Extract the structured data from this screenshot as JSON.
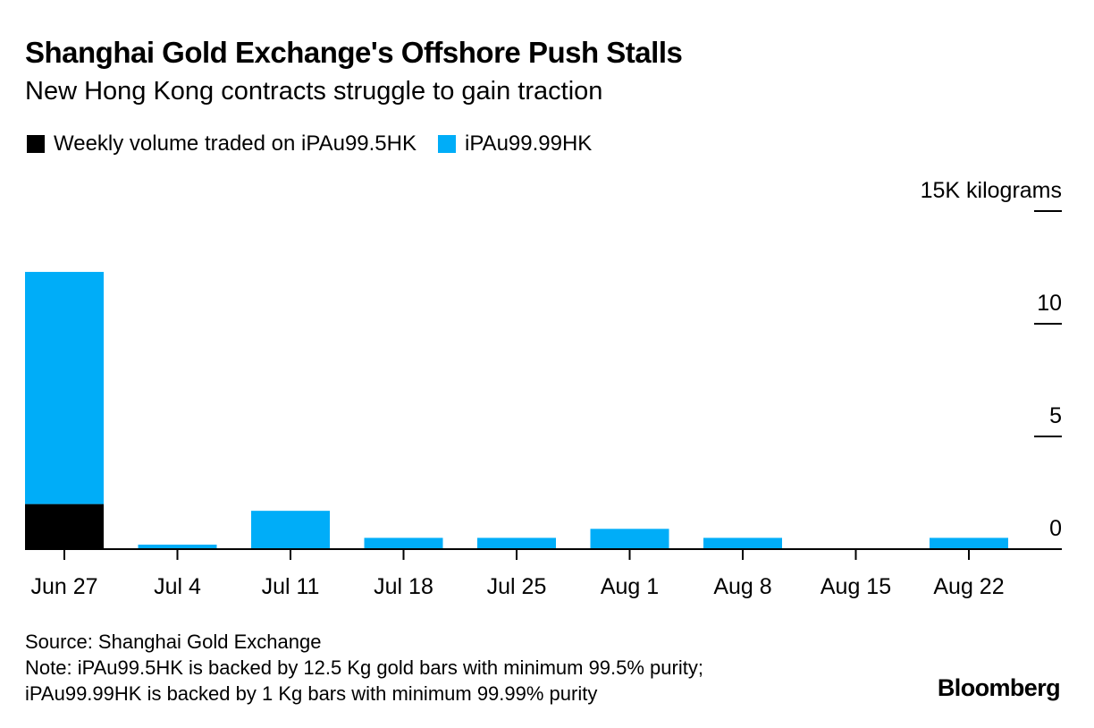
{
  "header": {
    "title": "Shanghai Gold Exchange's Offshore Push Stalls",
    "subtitle": "New Hong Kong contracts struggle to gain traction"
  },
  "colors": {
    "series_a": "#000000",
    "series_b": "#00adf8",
    "axis": "#000000"
  },
  "chart_data": {
    "type": "bar",
    "stacked": true,
    "title": "Shanghai Gold Exchange's Offshore Push Stalls",
    "subtitle": "New Hong Kong contracts struggle to gain traction",
    "categories": [
      "Jun 27",
      "Jul 4",
      "Jul 11",
      "Jul 18",
      "Jul 25",
      "Aug 1",
      "Aug 8",
      "Aug 15",
      "Aug 22"
    ],
    "series": [
      {
        "name": "Weekly volume traded on iPAu99.5HK",
        "values": [
          2.0,
          0,
          0,
          0,
          0,
          0,
          0,
          0,
          0
        ]
      },
      {
        "name": "iPAu99.99HK",
        "values": [
          10.3,
          0.2,
          1.7,
          0.5,
          0.5,
          0.9,
          0.5,
          0,
          0.5
        ]
      }
    ],
    "y_ticks": [
      0,
      5,
      10,
      15
    ],
    "y_tick_labels": [
      "0",
      "5",
      "10",
      "15K kilograms"
    ],
    "ylim": [
      0,
      15
    ],
    "xlabel": "",
    "ylabel": "kilograms",
    "legend_position": "top-left",
    "y_axis_side": "right"
  },
  "footer": {
    "source": "Source: Shanghai Gold Exchange",
    "note_line1": "Note: iPAu99.5HK is backed by 12.5 Kg gold bars with minimum 99.5% purity;",
    "note_line2": "iPAu99.99HK is backed by 1 Kg bars with minimum 99.99% purity",
    "brand": "Bloomberg"
  }
}
